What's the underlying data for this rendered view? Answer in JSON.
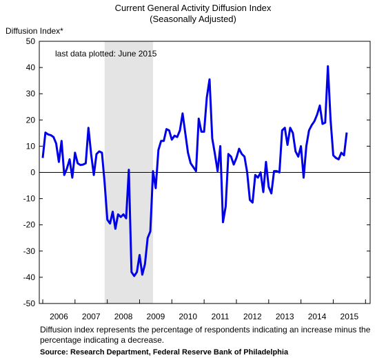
{
  "chart_data": {
    "type": "line",
    "title": "Current General Activity Diffusion Index",
    "subtitle": "(Seasonally Adjusted)",
    "ylabel": "Diffusion Index*",
    "ylim": [
      -50,
      50
    ],
    "yticks": [
      50,
      40,
      30,
      20,
      10,
      0,
      -10,
      -20,
      -30,
      -40,
      -50
    ],
    "year_labels": [
      "2006",
      "2007",
      "2008",
      "2009",
      "2010",
      "2011",
      "2012",
      "2013",
      "2014",
      "2015"
    ],
    "x_start": "2006-01",
    "x_end": "2015-06",
    "recession_shade": {
      "start": "2007-12",
      "end": "2009-06",
      "color": "#e4e4e4"
    },
    "annotation": "last data plotted: June 2015",
    "line_color": "#0000e6",
    "series": [
      {
        "dates": [
          "2006-01",
          "2006-02",
          "2006-03",
          "2006-04",
          "2006-05",
          "2006-06",
          "2006-07",
          "2006-08",
          "2006-09",
          "2006-10",
          "2006-11",
          "2006-12",
          "2007-01",
          "2007-02",
          "2007-03",
          "2007-04",
          "2007-05",
          "2007-06",
          "2007-07",
          "2007-08",
          "2007-09",
          "2007-10",
          "2007-11",
          "2007-12",
          "2008-01",
          "2008-02",
          "2008-03",
          "2008-04",
          "2008-05",
          "2008-06",
          "2008-07",
          "2008-08",
          "2008-09",
          "2008-10",
          "2008-11",
          "2008-12",
          "2009-01",
          "2009-02",
          "2009-03",
          "2009-04",
          "2009-05",
          "2009-06",
          "2009-07",
          "2009-08",
          "2009-09",
          "2009-10",
          "2009-11",
          "2009-12",
          "2010-01",
          "2010-02",
          "2010-03",
          "2010-04",
          "2010-05",
          "2010-06",
          "2010-07",
          "2010-08",
          "2010-09",
          "2010-10",
          "2010-11",
          "2010-12",
          "2011-01",
          "2011-02",
          "2011-03",
          "2011-04",
          "2011-05",
          "2011-06",
          "2011-07",
          "2011-08",
          "2011-09",
          "2011-10",
          "2011-11",
          "2011-12",
          "2012-01",
          "2012-02",
          "2012-03",
          "2012-04",
          "2012-05",
          "2012-06",
          "2012-07",
          "2012-08",
          "2012-09",
          "2012-10",
          "2012-11",
          "2012-12",
          "2013-01",
          "2013-02",
          "2013-03",
          "2013-04",
          "2013-05",
          "2013-06",
          "2013-07",
          "2013-08",
          "2013-09",
          "2013-10",
          "2013-11",
          "2013-12",
          "2014-01",
          "2014-02",
          "2014-03",
          "2014-04",
          "2014-05",
          "2014-06",
          "2014-07",
          "2014-08",
          "2014-09",
          "2014-10",
          "2014-11",
          "2014-12",
          "2015-01",
          "2015-02",
          "2015-03",
          "2015-04",
          "2015-05",
          "2015-06"
        ],
        "values": [
          5.5,
          15.2,
          14.5,
          14.2,
          13.5,
          11.0,
          4.0,
          12.0,
          -1.0,
          1.5,
          5.0,
          -2.0,
          7.5,
          3.5,
          2.8,
          3.0,
          3.5,
          17.0,
          7.0,
          -1.0,
          7.0,
          8.0,
          7.5,
          -4.0,
          -18.0,
          -19.5,
          -15.0,
          -21.5,
          -16.0,
          -17.0,
          -16.0,
          -17.5,
          1.0,
          -38.0,
          -39.5,
          -38.0,
          -31.5,
          -39.0,
          -35.0,
          -25.0,
          -22.5,
          0.5,
          -6.0,
          8.5,
          12.0,
          12.0,
          16.5,
          16.0,
          12.5,
          14.0,
          13.5,
          16.0,
          22.5,
          15.0,
          7.5,
          3.5,
          2.0,
          0.5,
          20.5,
          15.5,
          15.5,
          28.5,
          35.5,
          13.0,
          7.0,
          0.5,
          10.0,
          -19.0,
          -13.0,
          7.0,
          6.0,
          3.0,
          5.5,
          9.0,
          7.0,
          6.0,
          0.0,
          -10.5,
          -11.5,
          -1.0,
          -2.0,
          0.0,
          -7.5,
          4.0,
          -5.5,
          -8.0,
          0.5,
          0.5,
          0.0,
          16.0,
          17.0,
          10.5,
          17.0,
          15.0,
          8.0,
          6.0,
          10.0,
          -2.0,
          10.0,
          16.0,
          18.0,
          19.5,
          22.0,
          25.5,
          18.5,
          19.0,
          40.5,
          20.0,
          6.5,
          5.5,
          5.0,
          7.5,
          6.5,
          15.2
        ]
      }
    ]
  },
  "footnote": "Diffusion index represents the percentage of respondents indicating an increase minus the percentage indicating a decrease.",
  "source": "Source: Research Department, Federal Reserve Bank of Philadelphia"
}
